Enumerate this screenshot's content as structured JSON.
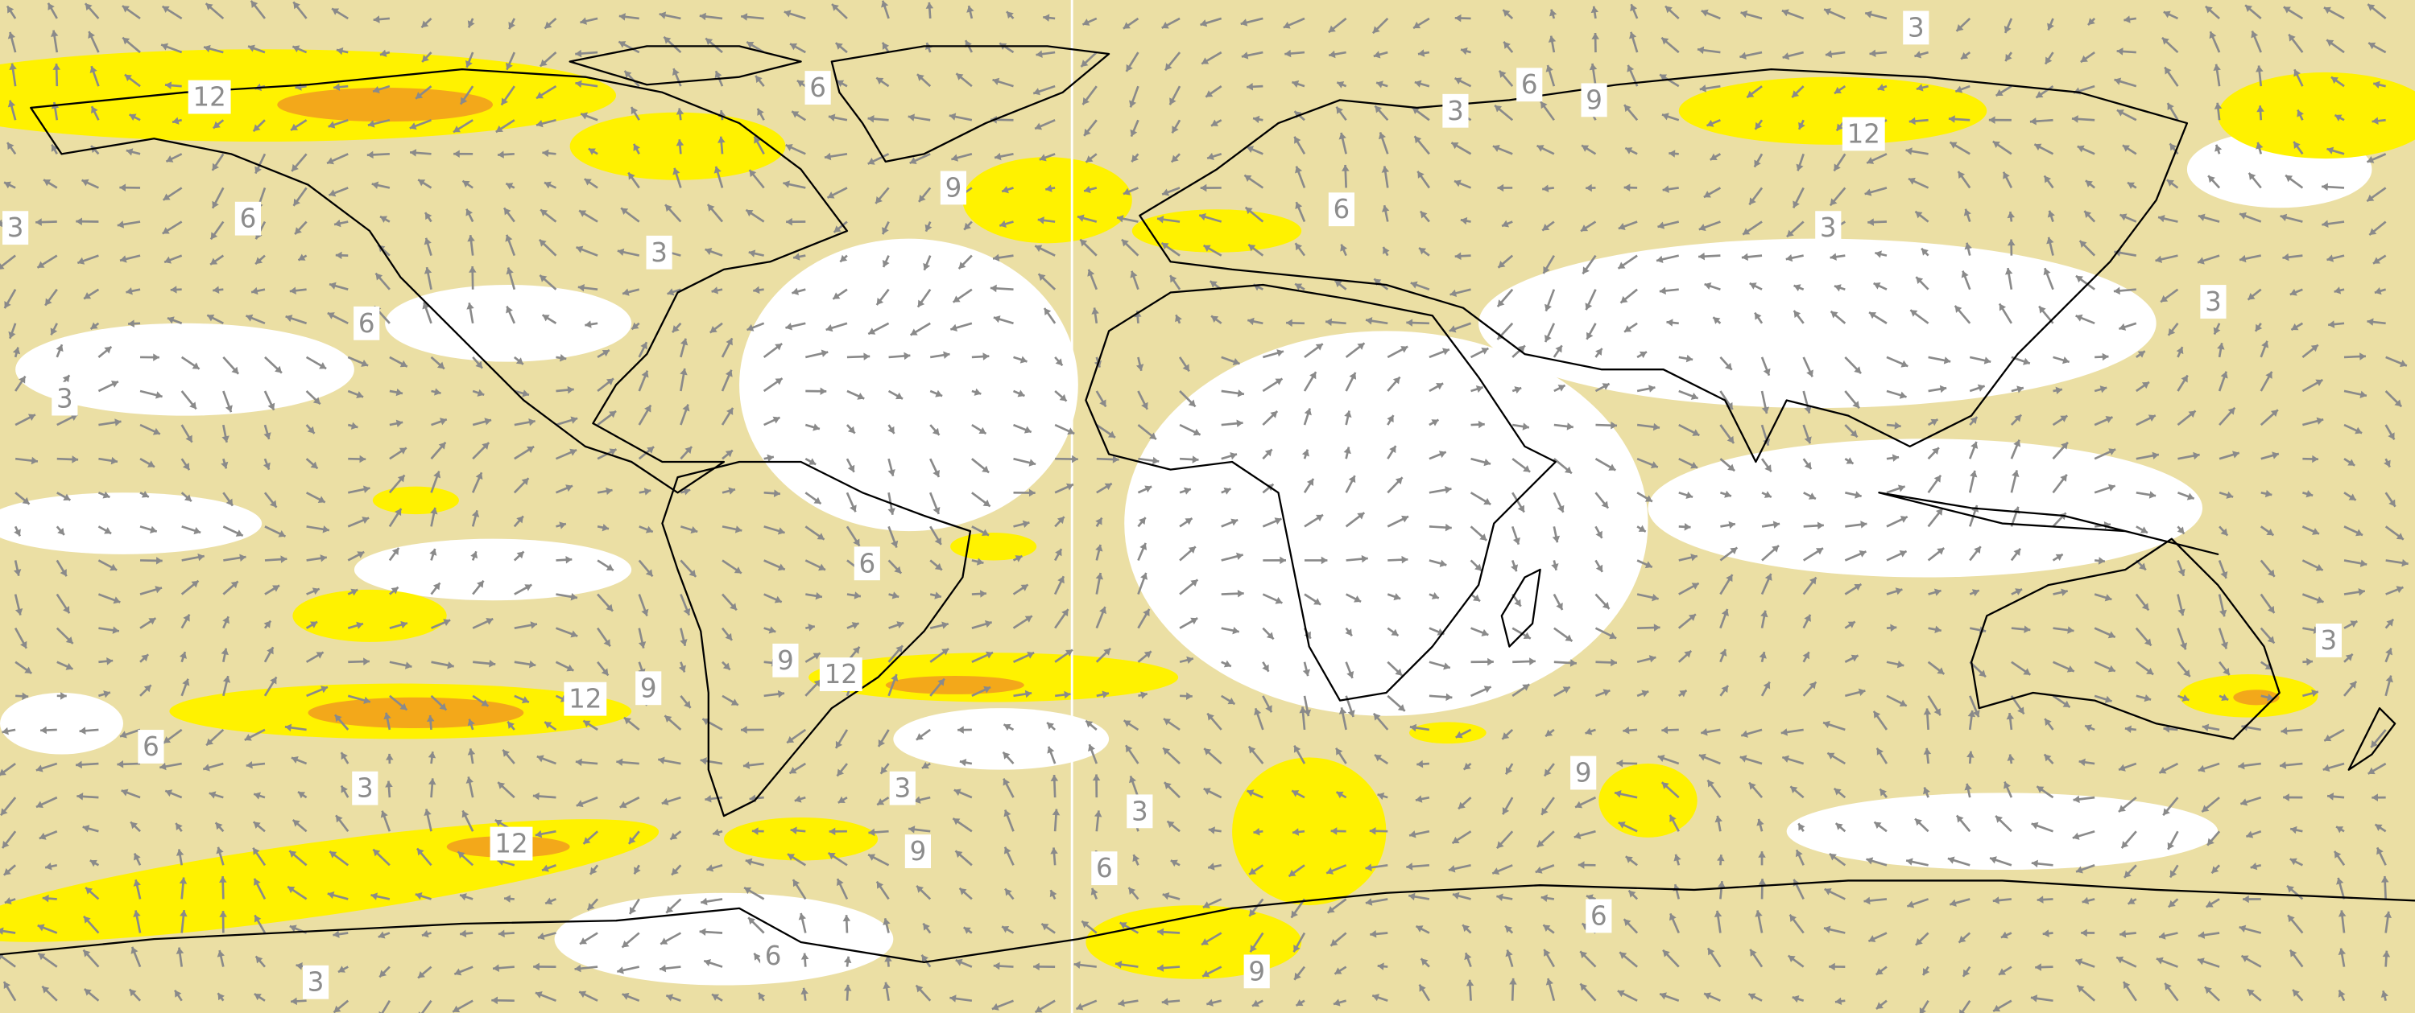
{
  "contour_labels": [
    12,
    6,
    3,
    6,
    3,
    3,
    6,
    9,
    3,
    6,
    9,
    3,
    12,
    6,
    3,
    3,
    6,
    9,
    12,
    9,
    12,
    6,
    3,
    3,
    3,
    9,
    12,
    6,
    9,
    3,
    6,
    6,
    3,
    9
  ]
}
